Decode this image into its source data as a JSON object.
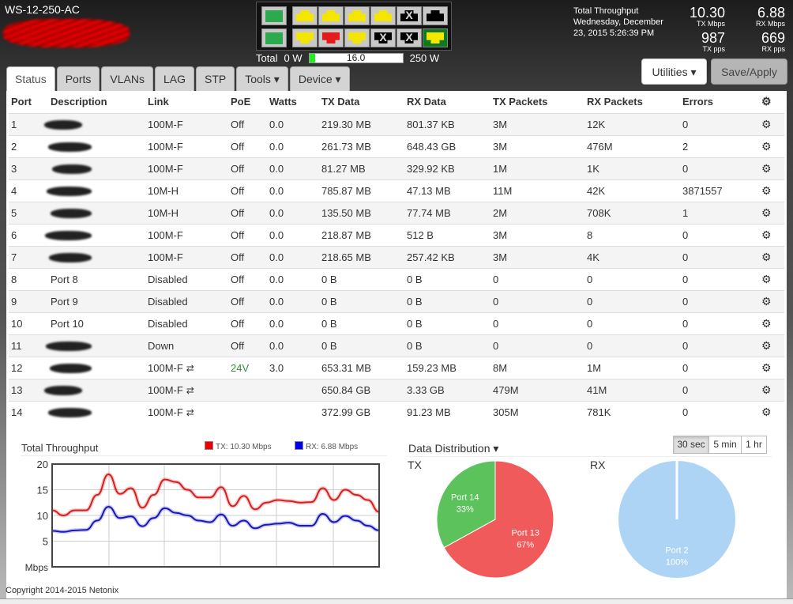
{
  "header": {
    "model": "WS-12-250-AC",
    "throughput_title": "Total Throughput",
    "datetime": "Wednesday, December 23, 2015 5:26:39 PM",
    "tx_mbps": "10.30",
    "tx_mbps_label": "TX Mbps",
    "rx_mbps": "6.88",
    "rx_mbps_label": "RX Mbps",
    "tx_pps": "987",
    "tx_pps_label": "TX pps",
    "rx_pps": "669",
    "rx_pps_label": "RX pps",
    "utilities_label": "Utilities ▾",
    "save_label": "Save/Apply"
  },
  "power": {
    "label": "Total",
    "min": "0 W",
    "value": "16.0",
    "max": "250 W",
    "fraction": 0.064
  },
  "port_panel": {
    "sfp": [
      "#2eaa4e",
      "#2eaa4e"
    ],
    "top": [
      {
        "color": "#f5e600",
        "x": false
      },
      {
        "color": "#f5e600",
        "x": false
      },
      {
        "color": "#f5e600",
        "x": false
      },
      {
        "color": "#f5e600",
        "x": false
      },
      {
        "color": "#000",
        "x": true
      },
      {
        "color": "#000",
        "x": false
      }
    ],
    "bottom": [
      {
        "color": "#f5e600",
        "x": false
      },
      {
        "color": "#e51b1b",
        "x": false
      },
      {
        "color": "#f5e600",
        "x": false
      },
      {
        "color": "#000",
        "x": true
      },
      {
        "color": "#000",
        "x": true
      },
      {
        "color": "#f5e600",
        "x": false,
        "bg": "#0d7a1f"
      }
    ]
  },
  "tabs": [
    "Status",
    "Ports",
    "VLANs",
    "LAG",
    "STP",
    "Tools ▾",
    "Device ▾"
  ],
  "table": {
    "headers": [
      "Port",
      "Description",
      "Link",
      "PoE",
      "Watts",
      "TX Data",
      "RX Data",
      "TX Packets",
      "RX Packets",
      "Errors"
    ],
    "rows": [
      [
        "1",
        "",
        "100M-F",
        "Off",
        "0.0",
        "219.30 MB",
        "801.37 KB",
        "3M",
        "12K",
        "0"
      ],
      [
        "2",
        "",
        "100M-F",
        "Off",
        "0.0",
        "261.73 MB",
        "648.43 GB",
        "3M",
        "476M",
        "2"
      ],
      [
        "3",
        "",
        "100M-F",
        "Off",
        "0.0",
        "81.27 MB",
        "329.92 KB",
        "1M",
        "1K",
        "0"
      ],
      [
        "4",
        "",
        "10M-H",
        "Off",
        "0.0",
        "785.87 MB",
        "47.13 MB",
        "11M",
        "42K",
        "3871557"
      ],
      [
        "5",
        "",
        "10M-H",
        "Off",
        "0.0",
        "135.50 MB",
        "77.74 MB",
        "2M",
        "708K",
        "1"
      ],
      [
        "6",
        "",
        "100M-F",
        "Off",
        "0.0",
        "218.87 MB",
        "512 B",
        "3M",
        "8",
        "0"
      ],
      [
        "7",
        "",
        "100M-F",
        "Off",
        "0.0",
        "218.65 MB",
        "257.42 KB",
        "3M",
        "4K",
        "0"
      ],
      [
        "8",
        "Port 8",
        "Disabled",
        "Off",
        "0.0",
        "0 B",
        "0 B",
        "0",
        "0",
        "0"
      ],
      [
        "9",
        "Port 9",
        "Disabled",
        "Off",
        "0.0",
        "0 B",
        "0 B",
        "0",
        "0",
        "0"
      ],
      [
        "10",
        "Port 10",
        "Disabled",
        "Off",
        "0.0",
        "0 B",
        "0 B",
        "0",
        "0",
        "0"
      ],
      [
        "11",
        "",
        "Down",
        "Off",
        "0.0",
        "0 B",
        "0 B",
        "0",
        "0",
        "0"
      ],
      [
        "12",
        "",
        "100M-F",
        "24V",
        "3.0",
        "653.31 MB",
        "159.23 MB",
        "8M",
        "1M",
        "0"
      ],
      [
        "13",
        "",
        "100M-F",
        "",
        "",
        "650.84 GB",
        "3.33 GB",
        "479M",
        "41M",
        "0"
      ],
      [
        "14",
        "",
        "100M-F",
        "",
        "",
        "372.99 GB",
        "91.23 MB",
        "305M",
        "781K",
        "0"
      ]
    ],
    "lag_ports": [
      "12",
      "13",
      "14"
    ],
    "redacted_ports": [
      "1",
      "2",
      "3",
      "4",
      "5",
      "6",
      "7",
      "11",
      "12",
      "13",
      "14"
    ]
  },
  "chart_data": [
    {
      "type": "line",
      "title": "Total Throughput",
      "ylabel": "Mbps",
      "ylim": [
        0,
        20
      ],
      "yticks": [
        "20",
        "15",
        "10",
        "5"
      ],
      "grid": true,
      "legend": "top-right",
      "series": [
        {
          "name": "TX: 10.30 Mbps",
          "color": "#e00000",
          "values": [
            11,
            10,
            11,
            11,
            14,
            18,
            14.2,
            15.3,
            11.5,
            14,
            17,
            16.5,
            15,
            13.5,
            13.5,
            15.5,
            11.8,
            13.8,
            11.2,
            12.5,
            13,
            12.8,
            12.5,
            12.6,
            15.3,
            13,
            15,
            14,
            13,
            10.7
          ]
        },
        {
          "name": "RX: 6.88 Mbps",
          "color": "#0000e0",
          "values": [
            7,
            6.8,
            7.1,
            7.2,
            9,
            11.7,
            9.5,
            9.8,
            7.9,
            9.5,
            11.4,
            10.5,
            10,
            9,
            8.7,
            10.2,
            8,
            9,
            7.5,
            8.2,
            8.4,
            8.6,
            8,
            8,
            10.3,
            8.7,
            9.9,
            9,
            8,
            7.1
          ]
        }
      ]
    },
    {
      "type": "pie",
      "title": "Data Distribution ▾",
      "name": "TX",
      "slices": [
        {
          "label": "Port 13",
          "value": 67,
          "pct": "67%",
          "color": "#f05a5a"
        },
        {
          "label": "Port 14",
          "value": 33,
          "pct": "33%",
          "color": "#5cc25c"
        }
      ]
    },
    {
      "type": "pie",
      "name": "RX",
      "slices": [
        {
          "label": "Port 2",
          "value": 100,
          "pct": "100%",
          "color": "#aed4f5"
        }
      ]
    }
  ],
  "range_buttons": [
    "30 sec",
    "5 min",
    "1 hr"
  ],
  "footer": {
    "copyright": "Copyright 2014-2015 Netonix"
  }
}
